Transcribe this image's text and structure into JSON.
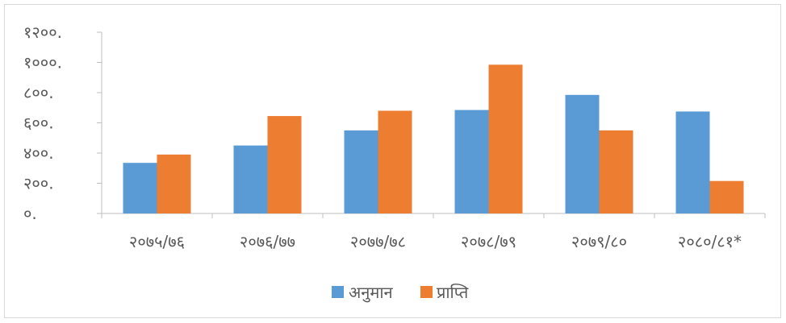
{
  "chart_data": {
    "type": "bar",
    "title": "",
    "xlabel": "",
    "ylabel": "",
    "categories": [
      "२०७५/७६",
      "२०७६/७७",
      "२०७७/७८",
      "२०७८/७९",
      "२०७९/८०",
      "२०८०/८१*"
    ],
    "series": [
      {
        "name": "अनुमान",
        "color": "#5b9bd5",
        "values": [
          335,
          450,
          550,
          685,
          785,
          675
        ]
      },
      {
        "name": "प्राप्ति",
        "color": "#ed7d31",
        "values": [
          390,
          645,
          680,
          985,
          550,
          215
        ]
      }
    ],
    "ylim": [
      0,
      1200
    ],
    "yticks": [
      0,
      200,
      400,
      600,
      800,
      1000,
      1200
    ],
    "ytick_labels": [
      "०.",
      "२००.",
      "४००.",
      "६००.",
      "८००.",
      "१०००.",
      "१२००."
    ],
    "grid": false,
    "legend_position": "bottom"
  }
}
